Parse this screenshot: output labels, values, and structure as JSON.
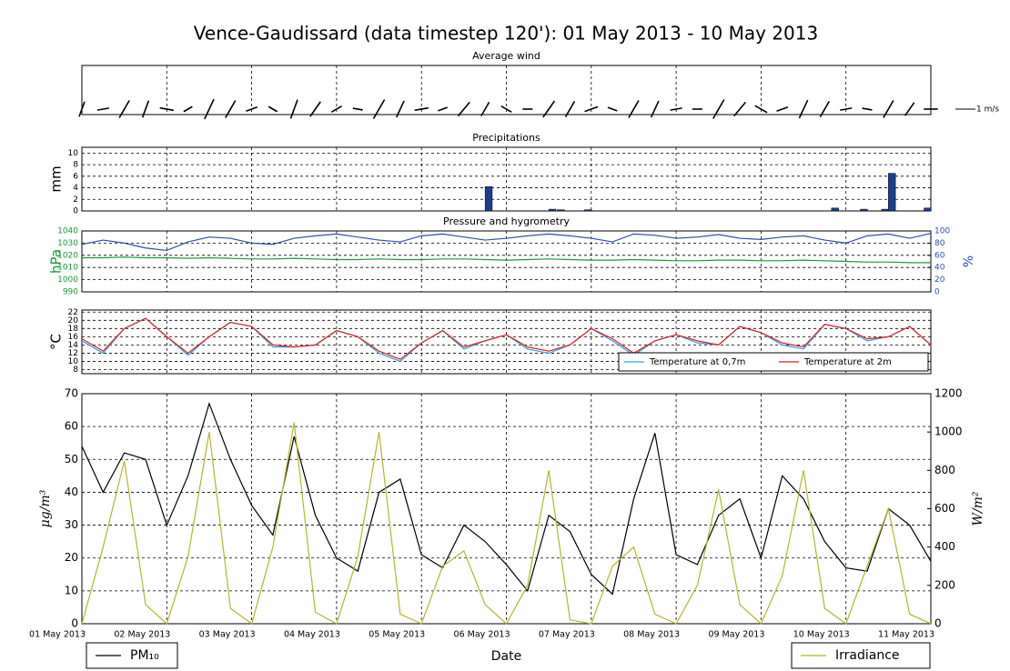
{
  "chart_data": [
    {
      "type": "quiver",
      "title": "Average wind",
      "key_label": "1 m/s",
      "key_value": 1,
      "x": [
        0,
        0.25,
        0.5,
        0.75,
        1,
        1.25,
        1.5,
        1.75,
        2,
        2.25,
        2.5,
        2.75,
        3,
        3.25,
        3.5,
        3.75,
        4,
        4.25,
        4.5,
        4.75,
        5,
        5.25,
        5.5,
        5.75,
        6,
        6.25,
        6.5,
        6.75,
        7,
        7.25,
        7.5,
        7.75,
        8,
        8.25,
        8.5,
        8.75,
        9,
        9.25,
        9.5,
        9.75,
        10
      ],
      "speed": [
        0.8,
        0.6,
        1.0,
        0.9,
        0.7,
        0.5,
        1.1,
        1.0,
        0.6,
        0.5,
        1.0,
        0.9,
        0.6,
        0.5,
        1.1,
        0.9,
        0.7,
        0.5,
        0.9,
        0.8,
        0.6,
        0.5,
        1.0,
        0.9,
        0.7,
        0.5,
        1.0,
        0.9,
        0.6,
        0.5,
        1.1,
        0.9,
        0.7,
        0.6,
        1.0,
        0.9,
        0.6,
        0.5,
        1.0,
        0.8,
        0.7
      ],
      "direction": [
        200,
        260,
        30,
        20,
        280,
        240,
        25,
        30,
        250,
        300,
        20,
        35,
        240,
        280,
        30,
        25,
        260,
        250,
        40,
        30,
        300,
        270,
        35,
        30,
        250,
        290,
        30,
        25,
        260,
        270,
        30,
        40,
        300,
        250,
        25,
        30,
        260,
        280,
        30,
        35,
        270
      ]
    },
    {
      "type": "bar",
      "title": "Precipitations",
      "ylabel": "mm",
      "ylim": [
        0,
        11
      ],
      "yticks": [
        0,
        2,
        4,
        6,
        8,
        10
      ],
      "grid": true,
      "x": [
        4.75,
        5.5,
        5.6,
        5.92,
        8.83,
        9.17,
        9.42,
        9.5,
        9.92
      ],
      "values": [
        4.2,
        0.3,
        0.2,
        0.2,
        0.5,
        0.3,
        0.3,
        6.5,
        0.5
      ],
      "color": "#1f3d8f"
    },
    {
      "type": "line",
      "title": "Pressure and hygrometry",
      "ylabel": "hPa",
      "y2label": "%",
      "ylim": [
        990,
        1040
      ],
      "yticks": [
        990,
        1000,
        1010,
        1020,
        1030,
        1040
      ],
      "y2lim": [
        0,
        100
      ],
      "y2ticks": [
        0,
        20,
        40,
        60,
        80,
        100
      ],
      "grid": true,
      "ycolor": "#1a9a3a",
      "y2color": "#2a4fb0",
      "x": [
        0,
        0.25,
        0.5,
        0.75,
        1,
        1.25,
        1.5,
        1.75,
        2,
        2.25,
        2.5,
        2.75,
        3,
        3.25,
        3.5,
        3.75,
        4,
        4.25,
        4.5,
        4.75,
        5,
        5.25,
        5.5,
        5.75,
        6,
        6.25,
        6.5,
        6.75,
        7,
        7.25,
        7.5,
        7.75,
        8,
        8.25,
        8.5,
        8.75,
        9,
        9.25,
        9.5,
        9.75,
        10
      ],
      "series": [
        {
          "color": "#1a9a3a",
          "values": [
            1018,
            1018,
            1018.5,
            1018,
            1018,
            1017.5,
            1018,
            1017.5,
            1017,
            1017,
            1017.5,
            1017,
            1016.5,
            1016.5,
            1017,
            1016.5,
            1016.5,
            1017,
            1017,
            1016.5,
            1016,
            1016.5,
            1017,
            1016.5,
            1016,
            1016,
            1016.5,
            1016,
            1015.5,
            1015.5,
            1016,
            1016,
            1015.5,
            1015.5,
            1016,
            1015.5,
            1015,
            1014.5,
            1014.5,
            1014,
            1014
          ]
        },
        {
          "color": "#2a4fb0",
          "axis": "y2",
          "values": [
            78,
            85,
            80,
            72,
            68,
            82,
            90,
            88,
            80,
            78,
            88,
            92,
            95,
            90,
            85,
            82,
            92,
            95,
            90,
            85,
            88,
            92,
            95,
            92,
            88,
            82,
            95,
            93,
            88,
            90,
            94,
            88,
            86,
            90,
            92,
            85,
            80,
            92,
            95,
            88,
            96
          ]
        }
      ]
    },
    {
      "type": "line",
      "ylabel": "°C",
      "ylim": [
        7,
        22.5
      ],
      "yticks": [
        8,
        10,
        12,
        14,
        16,
        18,
        20,
        22
      ],
      "grid": true,
      "legend": "lower right",
      "x": [
        0,
        0.25,
        0.5,
        0.75,
        1,
        1.25,
        1.5,
        1.75,
        2,
        2.25,
        2.5,
        2.75,
        3,
        3.25,
        3.5,
        3.75,
        4,
        4.25,
        4.5,
        4.75,
        5,
        5.25,
        5.5,
        5.75,
        6,
        6.25,
        6.5,
        6.75,
        7,
        7.25,
        7.5,
        7.75,
        8,
        8.25,
        8.5,
        8.75,
        9,
        9.25,
        9.5,
        9.75,
        10
      ],
      "series": [
        {
          "name": "Temperature at 0,7m",
          "color": "#29a3e0",
          "values": [
            15,
            12,
            18,
            20.5,
            16,
            11.5,
            16,
            19.5,
            18.5,
            13.5,
            13.5,
            14,
            17.5,
            16,
            12,
            10,
            14.5,
            17.5,
            13,
            15,
            16.5,
            13,
            12,
            14,
            18,
            15,
            11.5,
            15,
            16.5,
            14.5,
            14,
            18.5,
            17,
            14,
            13,
            19,
            18,
            15,
            16,
            18.5,
            14
          ]
        },
        {
          "name": "Temperature at 2m",
          "color": "#e0201c",
          "values": [
            15.5,
            12.5,
            18,
            20.5,
            16,
            12,
            16,
            19.5,
            18.5,
            14,
            13.5,
            14,
            17.5,
            16,
            12.5,
            10.5,
            14.5,
            17.5,
            13.5,
            15,
            16.5,
            13.5,
            12.5,
            14,
            18,
            15.5,
            12,
            15,
            16.5,
            15,
            14,
            18.5,
            17,
            14.5,
            13.5,
            19,
            18,
            15.5,
            16,
            18.5,
            14
          ]
        }
      ]
    },
    {
      "type": "line",
      "xlabel": "Date",
      "ylabel": "μg/m³",
      "y2label": "W/m²",
      "ylim": [
        0,
        70
      ],
      "yticks": [
        0,
        10,
        20,
        30,
        40,
        50,
        60,
        70
      ],
      "y2lim": [
        0,
        1200
      ],
      "y2ticks": [
        0,
        200,
        400,
        600,
        800,
        1000,
        1200
      ],
      "grid": true,
      "legend": "below",
      "xlim": [
        0,
        10
      ],
      "xticks": [
        {
          "value": 0,
          "label": "01 May 2013"
        },
        {
          "value": 1,
          "label": "02 May 2013"
        },
        {
          "value": 2,
          "label": "03 May 2013"
        },
        {
          "value": 3,
          "label": "04 May 2013"
        },
        {
          "value": 4,
          "label": "05 May 2013"
        },
        {
          "value": 5,
          "label": "06 May 2013"
        },
        {
          "value": 6,
          "label": "07 May 2013"
        },
        {
          "value": 7,
          "label": "08 May 2013"
        },
        {
          "value": 8,
          "label": "09 May 2013"
        },
        {
          "value": 9,
          "label": "10 May 2013"
        },
        {
          "value": 10,
          "label": "11 May 2013"
        }
      ],
      "x": [
        0,
        0.25,
        0.5,
        0.75,
        1,
        1.25,
        1.5,
        1.75,
        2,
        2.25,
        2.5,
        2.75,
        3,
        3.25,
        3.5,
        3.75,
        4,
        4.25,
        4.5,
        4.75,
        5,
        5.25,
        5.5,
        5.75,
        6,
        6.25,
        6.5,
        6.75,
        7,
        7.25,
        7.5,
        7.75,
        8,
        8.25,
        8.5,
        8.75,
        9,
        9.25,
        9.5,
        9.75,
        10
      ],
      "series": [
        {
          "name": "PM₁₀",
          "color": "#000000",
          "values": [
            54,
            40,
            52,
            50,
            30,
            45,
            67,
            50,
            36,
            27,
            57,
            33,
            20,
            16,
            40,
            44,
            21,
            17,
            30,
            25,
            18,
            10,
            33,
            28,
            15,
            9,
            38,
            58,
            21,
            18,
            33,
            38,
            20,
            45,
            38,
            25,
            17,
            16,
            35,
            30,
            19
          ]
        },
        {
          "name": "Irradiance",
          "color": "#b5b52a",
          "axis": "y2",
          "values": [
            0,
            400,
            850,
            100,
            0,
            350,
            1000,
            80,
            0,
            400,
            1050,
            60,
            0,
            350,
            1000,
            50,
            0,
            300,
            380,
            100,
            0,
            200,
            800,
            20,
            0,
            300,
            400,
            50,
            0,
            200,
            700,
            100,
            0,
            250,
            800,
            80,
            0,
            300,
            600,
            50,
            0
          ]
        }
      ]
    }
  ],
  "title": "Vence-Gaudissard (data timestep 120'): 01 May 2013 - 10 May 2013"
}
